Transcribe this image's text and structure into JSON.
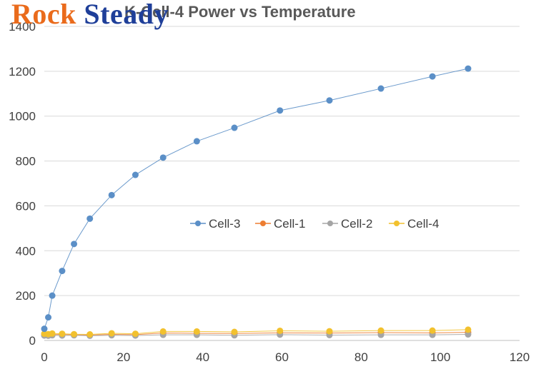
{
  "logo": {
    "word1": "Rock",
    "word2": "Steady"
  },
  "chart_data": {
    "type": "scatter",
    "title": "K-Cell-4 Power vs Temperature",
    "xlabel": "",
    "ylabel": "",
    "xlim": [
      0,
      120
    ],
    "ylim": [
      0,
      1400
    ],
    "x_ticks": [
      "0",
      "20",
      "40",
      "60",
      "80",
      "100",
      "120"
    ],
    "y_ticks": [
      "0",
      "200",
      "400",
      "600",
      "800",
      "1000",
      "1200",
      "1400"
    ],
    "grid": "horizontal",
    "legend_position": "center",
    "series": [
      {
        "name": "Cell-3",
        "color": "#5b8fc7",
        "x": [
          0,
          1,
          2,
          4.5,
          7.5,
          11.5,
          17,
          23,
          30,
          38.5,
          48,
          59.5,
          72,
          85,
          98,
          107
        ],
        "y": [
          52,
          103,
          200,
          310,
          430,
          543,
          648,
          738,
          815,
          888,
          948,
          1025,
          1070,
          1123,
          1177,
          1212
        ]
      },
      {
        "name": "Cell-1",
        "color": "#ed7d31",
        "x": [
          0,
          1,
          2,
          4.5,
          7.5,
          11.5,
          17,
          23,
          30,
          38.5,
          48,
          59.5,
          72,
          85,
          98,
          107
        ],
        "y": [
          25,
          24,
          26,
          27,
          25,
          24,
          27,
          26,
          33,
          32,
          31,
          34,
          33,
          35,
          34,
          36
        ]
      },
      {
        "name": "Cell-2",
        "color": "#a5a5a5",
        "x": [
          0,
          1,
          2,
          4.5,
          7.5,
          11.5,
          17,
          23,
          30,
          38.5,
          48,
          59.5,
          72,
          85,
          98,
          107
        ],
        "y": [
          22,
          21,
          23,
          22,
          23,
          21,
          23,
          22,
          25,
          25,
          23,
          26,
          24,
          25,
          25,
          27
        ]
      },
      {
        "name": "Cell-4",
        "color": "#f2c12e",
        "x": [
          0,
          1,
          2,
          4.5,
          7.5,
          11.5,
          17,
          23,
          30,
          38.5,
          48,
          59.5,
          72,
          85,
          98,
          107
        ],
        "y": [
          30,
          28,
          31,
          30,
          28,
          27,
          32,
          30,
          40,
          40,
          38,
          43,
          41,
          44,
          44,
          48
        ]
      }
    ]
  }
}
